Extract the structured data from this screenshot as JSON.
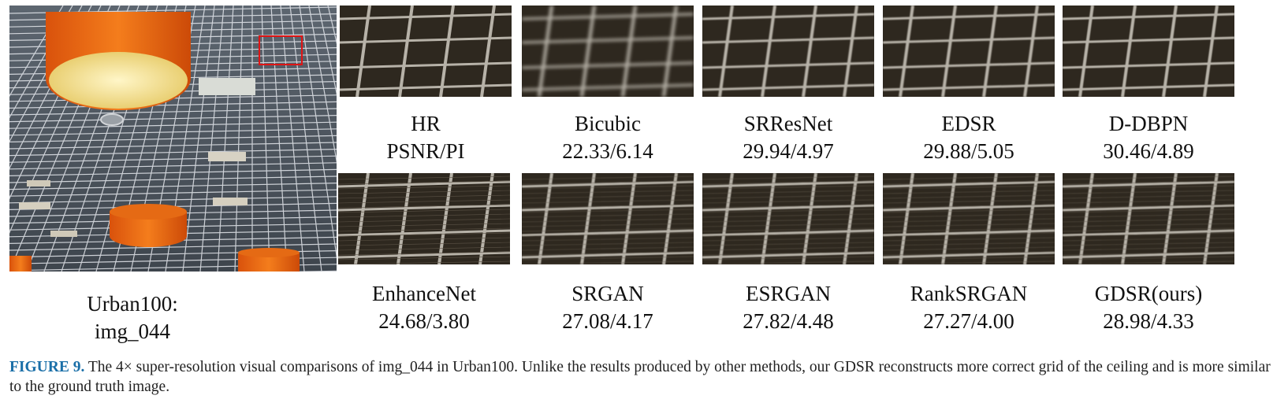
{
  "main_image": {
    "dataset": "Urban100:",
    "image_id": "img_044"
  },
  "crops_top": [
    {
      "method": "HR",
      "score": "PSNR/PI"
    },
    {
      "method": "Bicubic",
      "score": "22.33/6.14"
    },
    {
      "method": "SRResNet",
      "score": "29.94/4.97"
    },
    {
      "method": "EDSR",
      "score": "29.88/5.05"
    },
    {
      "method": "D-DBPN",
      "score": "30.46/4.89"
    }
  ],
  "crops_bottom": [
    {
      "method": "EnhanceNet",
      "score": "24.68/3.80"
    },
    {
      "method": "SRGAN",
      "score": "27.08/4.17"
    },
    {
      "method": "ESRGAN",
      "score": "27.82/4.48"
    },
    {
      "method": "RankSRGAN",
      "score": "27.27/4.00"
    },
    {
      "method": "GDSR(ours)",
      "score": "28.98/4.33"
    }
  ],
  "caption": {
    "label": "FIGURE 9.",
    "text": " The 4× super-resolution visual comparisons of img_044 in Urban100. Unlike the results produced by other methods, our GDSR reconstructs more correct grid of the ceiling and is more similar to the ground truth image."
  }
}
